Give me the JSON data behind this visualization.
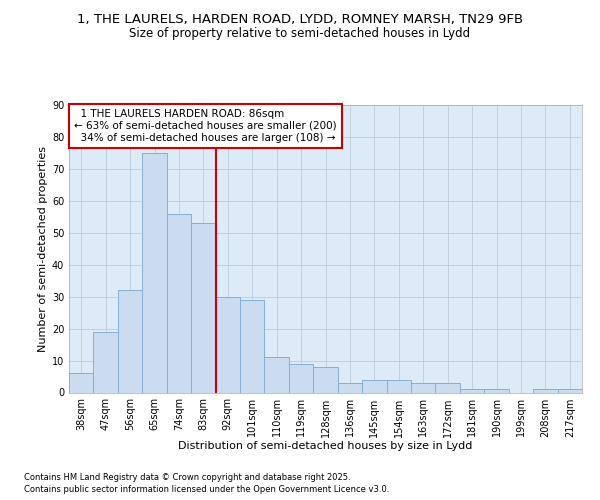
{
  "title_line1": "1, THE LAURELS, HARDEN ROAD, LYDD, ROMNEY MARSH, TN29 9FB",
  "title_line2": "Size of property relative to semi-detached houses in Lydd",
  "xlabel": "Distribution of semi-detached houses by size in Lydd",
  "ylabel": "Number of semi-detached properties",
  "categories": [
    "38sqm",
    "47sqm",
    "56sqm",
    "65sqm",
    "74sqm",
    "83sqm",
    "92sqm",
    "101sqm",
    "110sqm",
    "119sqm",
    "128sqm",
    "136sqm",
    "145sqm",
    "154sqm",
    "163sqm",
    "172sqm",
    "181sqm",
    "190sqm",
    "199sqm",
    "208sqm",
    "217sqm"
  ],
  "values": [
    6,
    19,
    32,
    75,
    56,
    53,
    30,
    29,
    11,
    9,
    8,
    3,
    4,
    4,
    3,
    3,
    1,
    1,
    0,
    1,
    1
  ],
  "bar_color": "#ccdcf0",
  "bar_edge_color": "#84afd4",
  "pct_smaller": 63,
  "count_smaller": 200,
  "pct_larger": 34,
  "count_larger": 108,
  "highlight_label": "1 THE LAURELS HARDEN ROAD: 86sqm",
  "vline_color": "#cc0000",
  "annotation_box_color": "#cc0000",
  "ylim": [
    0,
    90
  ],
  "yticks": [
    0,
    10,
    20,
    30,
    40,
    50,
    60,
    70,
    80,
    90
  ],
  "plot_bg_color": "#ddeaf7",
  "grid_color": "#b8ccdf",
  "footnote1": "Contains HM Land Registry data © Crown copyright and database right 2025.",
  "footnote2": "Contains public sector information licensed under the Open Government Licence v3.0.",
  "title_fontsize": 9.5,
  "subtitle_fontsize": 8.5,
  "axis_label_fontsize": 8,
  "tick_fontsize": 7,
  "annot_fontsize": 7.5
}
